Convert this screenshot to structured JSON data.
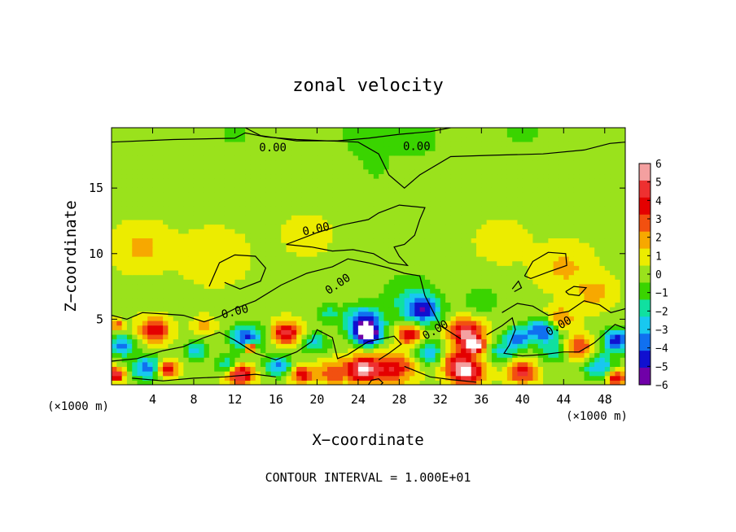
{
  "chart_data": {
    "type": "heatmap",
    "title": "zonal velocity",
    "xlabel": "X−coordinate",
    "ylabel": "Z−coordinate",
    "x_unit_label_left": "(×1000 m)",
    "x_unit_label_right": "(×1000 m)",
    "xlim": [
      0,
      50
    ],
    "ylim": [
      0,
      19.6
    ],
    "x_ticks": [
      4,
      8,
      12,
      16,
      20,
      24,
      28,
      32,
      36,
      40,
      44,
      48
    ],
    "y_ticks": [
      5,
      10,
      15
    ],
    "contour_labels": [
      "0.00",
      "0.00",
      "0.00",
      "0.00",
      "0.00",
      "0.00",
      "0.00"
    ],
    "footer": "CONTOUR INTERVAL = 1.000E+01",
    "colorbar": {
      "ticks": [
        "6",
        "5",
        "4",
        "3",
        "2",
        "1",
        "0",
        "−1",
        "−2",
        "−3",
        "−4",
        "−5",
        "−6"
      ],
      "colors": [
        "#f4a0a0",
        "#ee3030",
        "#e40000",
        "#f25010",
        "#f7a800",
        "#ecec00",
        "#9ae21c",
        "#3ad400",
        "#10e0a0",
        "#18c8f0",
        "#1070f0",
        "#1010d0",
        "#7000a8"
      ]
    },
    "anomalies": [
      {
        "x": 4.2,
        "z": 4.2,
        "v": 4.2,
        "r": 1.4
      },
      {
        "x": 1.0,
        "z": 3.0,
        "v": -4.0,
        "r": 1.3
      },
      {
        "x": 0.6,
        "z": 4.6,
        "v": 3.0,
        "r": 0.6
      },
      {
        "x": 0.4,
        "z": 0.8,
        "v": 5.5,
        "r": 0.8
      },
      {
        "x": 3.5,
        "z": 1.3,
        "v": -4.5,
        "r": 1.5
      },
      {
        "x": 5.3,
        "z": 1.2,
        "v": 5.0,
        "r": 1.0
      },
      {
        "x": 8.2,
        "z": 2.6,
        "v": -3.3,
        "r": 1.2
      },
      {
        "x": 9.0,
        "z": 4.5,
        "v": 2.0,
        "r": 1.0
      },
      {
        "x": 11.2,
        "z": 1.5,
        "v": -3.0,
        "r": 1.1
      },
      {
        "x": 12.5,
        "z": 0.8,
        "v": 5.5,
        "r": 1.2
      },
      {
        "x": 13.2,
        "z": 3.6,
        "v": -5.0,
        "r": 1.6
      },
      {
        "x": 13.5,
        "z": 2.9,
        "v": 6.5,
        "r": 0.6
      },
      {
        "x": 16.3,
        "z": 1.5,
        "v": -4.0,
        "r": 1.3
      },
      {
        "x": 17.0,
        "z": 4.0,
        "v": 5.0,
        "r": 1.3
      },
      {
        "x": 18.5,
        "z": 0.8,
        "v": 4.0,
        "r": 1.1
      },
      {
        "x": 19.8,
        "z": 3.2,
        "v": -3.0,
        "r": 1.3
      },
      {
        "x": 21.0,
        "z": 5.5,
        "v": -2.0,
        "r": 1.2
      },
      {
        "x": 24.5,
        "z": 4.8,
        "v": -5.5,
        "r": 1.9
      },
      {
        "x": 25.0,
        "z": 3.8,
        "v": -6.5,
        "r": 1.2
      },
      {
        "x": 24.5,
        "z": 1.2,
        "v": 6.0,
        "r": 1.6
      },
      {
        "x": 27.5,
        "z": 1.3,
        "v": 4.0,
        "r": 1.8
      },
      {
        "x": 29.0,
        "z": 3.9,
        "v": 4.5,
        "r": 1.2
      },
      {
        "x": 30.3,
        "z": 5.7,
        "v": -4.8,
        "r": 1.7
      },
      {
        "x": 31.0,
        "z": 2.5,
        "v": -3.5,
        "r": 1.4
      },
      {
        "x": 33.5,
        "z": 2.0,
        "v": 2.5,
        "r": 1.5
      },
      {
        "x": 34.5,
        "z": 4.0,
        "v": 5.5,
        "r": 1.6
      },
      {
        "x": 35.3,
        "z": 3.0,
        "v": 6.5,
        "r": 0.9
      },
      {
        "x": 34.5,
        "z": 1.0,
        "v": 6.0,
        "r": 1.6
      },
      {
        "x": 38.0,
        "z": 2.5,
        "v": -3.0,
        "r": 1.2
      },
      {
        "x": 39.5,
        "z": 3.6,
        "v": -4.0,
        "r": 1.3
      },
      {
        "x": 40.0,
        "z": 1.0,
        "v": 4.5,
        "r": 1.3
      },
      {
        "x": 42.0,
        "z": 4.2,
        "v": -5.0,
        "r": 1.6
      },
      {
        "x": 43.5,
        "z": 5.0,
        "v": 3.0,
        "r": 1.4
      },
      {
        "x": 43.0,
        "z": 2.5,
        "v": -2.5,
        "r": 1.3
      },
      {
        "x": 45.5,
        "z": 2.8,
        "v": 3.5,
        "r": 1.4
      },
      {
        "x": 47.5,
        "z": 1.4,
        "v": -4.0,
        "r": 1.5
      },
      {
        "x": 49.2,
        "z": 3.4,
        "v": -5.5,
        "r": 1.4
      },
      {
        "x": 49.0,
        "z": 0.6,
        "v": 5.0,
        "r": 0.9
      },
      {
        "x": 21.5,
        "z": 1.0,
        "v": 3.0,
        "r": 1.4
      },
      {
        "x": 10.0,
        "z": 9.8,
        "v": 1.2,
        "r": 2.8
      },
      {
        "x": 3.0,
        "z": 10.5,
        "v": 1.5,
        "r": 2.5
      },
      {
        "x": 44.0,
        "z": 9.0,
        "v": 1.5,
        "r": 2.5
      },
      {
        "x": 47.0,
        "z": 7.0,
        "v": 1.7,
        "r": 1.8
      },
      {
        "x": 26.0,
        "z": 16.0,
        "v": -0.6,
        "r": 2.5
      },
      {
        "x": 30.0,
        "z": 18.7,
        "v": -1.5,
        "r": 2.0
      },
      {
        "x": 25.0,
        "z": 19.2,
        "v": -1.2,
        "r": 4.0
      },
      {
        "x": 12.0,
        "z": 19.3,
        "v": -0.9,
        "r": 3.5
      },
      {
        "x": 40.0,
        "z": 19.3,
        "v": -1.0,
        "r": 3.0
      },
      {
        "x": 29.0,
        "z": 6.8,
        "v": -1.8,
        "r": 3.0
      },
      {
        "x": 36.0,
        "z": 6.5,
        "v": -1.5,
        "r": 1.8
      },
      {
        "x": 19.0,
        "z": 11.5,
        "v": 0.8,
        "r": 2.2
      },
      {
        "x": 38.0,
        "z": 11.0,
        "v": 1.0,
        "r": 2.2
      }
    ],
    "contours": [
      [
        [
          0,
          18.5
        ],
        [
          6,
          18.7
        ],
        [
          12,
          18.8
        ],
        [
          13,
          19.2
        ],
        [
          15,
          18.9
        ],
        [
          18,
          18.7
        ],
        [
          24,
          18.5
        ],
        [
          26,
          17.6
        ],
        [
          27,
          16.0
        ],
        [
          28.5,
          15.0
        ],
        [
          30,
          16.0
        ],
        [
          33,
          17.4
        ],
        [
          37,
          17.5
        ],
        [
          42,
          17.6
        ],
        [
          46,
          17.9
        ],
        [
          48.5,
          18.4
        ],
        [
          50,
          18.5
        ]
      ],
      [
        [
          13,
          19.6
        ],
        [
          14.5,
          19.0
        ],
        [
          18,
          18.6
        ],
        [
          22,
          18.6
        ],
        [
          25,
          18.8
        ],
        [
          28,
          19.1
        ],
        [
          31,
          19.3
        ],
        [
          33,
          19.6
        ]
      ],
      [
        [
          17,
          10.7
        ],
        [
          20,
          11.6
        ],
        [
          22.5,
          12.2
        ],
        [
          25,
          12.6
        ],
        [
          26,
          13.1
        ],
        [
          28,
          13.7
        ],
        [
          30.5,
          13.5
        ],
        [
          30,
          12.6
        ],
        [
          29.5,
          11.4
        ],
        [
          28.5,
          10.7
        ],
        [
          27.5,
          10.5
        ],
        [
          28,
          9.8
        ],
        [
          28.8,
          9.1
        ],
        [
          27,
          9.3
        ],
        [
          25.5,
          10.0
        ],
        [
          23.5,
          10.3
        ],
        [
          21.5,
          10.2
        ],
        [
          19.5,
          10.5
        ],
        [
          17,
          10.7
        ]
      ],
      [
        [
          0,
          5.3
        ],
        [
          1.5,
          5.0
        ],
        [
          3,
          5.5
        ],
        [
          5,
          5.4
        ],
        [
          7,
          5.3
        ],
        [
          9,
          4.8
        ],
        [
          10.5,
          5.2
        ],
        [
          12,
          5.8
        ],
        [
          14,
          6.4
        ],
        [
          16.5,
          7.6
        ],
        [
          19,
          8.5
        ],
        [
          21.5,
          9.0
        ],
        [
          23,
          9.6
        ],
        [
          25,
          9.3
        ],
        [
          27,
          8.9
        ],
        [
          28.5,
          8.5
        ],
        [
          30,
          8.3
        ],
        [
          30.5,
          6.8
        ],
        [
          32,
          4.5
        ],
        [
          34,
          3.5
        ]
      ],
      [
        [
          9.5,
          7.5
        ],
        [
          10.5,
          9.3
        ],
        [
          12,
          9.9
        ],
        [
          14,
          9.8
        ],
        [
          15,
          8.9
        ],
        [
          14.5,
          7.9
        ],
        [
          12.5,
          7.3
        ],
        [
          11,
          7.8
        ]
      ],
      [
        [
          38,
          5.5
        ],
        [
          39.5,
          6.2
        ],
        [
          41,
          6.0
        ],
        [
          42.5,
          5.3
        ],
        [
          44.5,
          5.6
        ],
        [
          46,
          6.4
        ],
        [
          47.5,
          6.1
        ],
        [
          48.6,
          5.5
        ],
        [
          50,
          5.8
        ]
      ],
      [
        [
          40.2,
          8.3
        ],
        [
          41,
          9.4
        ],
        [
          42.5,
          10.1
        ],
        [
          44.2,
          10.0
        ],
        [
          44.3,
          9.1
        ],
        [
          42.5,
          8.6
        ],
        [
          40.8,
          8.1
        ],
        [
          40.2,
          8.3
        ]
      ],
      [
        [
          44.2,
          7.1
        ],
        [
          45,
          7.5
        ],
        [
          46.2,
          7.4
        ],
        [
          45.5,
          6.8
        ],
        [
          44.5,
          6.9
        ],
        [
          44.2,
          7.1
        ]
      ],
      [
        [
          39,
          7.3
        ],
        [
          39.6,
          7.9
        ],
        [
          39.9,
          7.4
        ],
        [
          39.2,
          7.1
        ]
      ],
      [
        [
          0,
          1.8
        ],
        [
          2.5,
          2.0
        ],
        [
          5,
          2.6
        ],
        [
          7,
          2.9
        ],
        [
          9,
          3.6
        ],
        [
          10.5,
          4.0
        ],
        [
          12,
          3.4
        ],
        [
          14,
          2.4
        ],
        [
          16,
          1.9
        ],
        [
          18,
          2.5
        ],
        [
          19.5,
          3.3
        ],
        [
          20,
          4.2
        ],
        [
          21.5,
          3.6
        ],
        [
          22,
          2.0
        ],
        [
          23,
          2.3
        ],
        [
          25,
          3.3
        ],
        [
          27.5,
          3.7
        ],
        [
          28.2,
          3.1
        ],
        [
          27,
          2.4
        ],
        [
          26,
          1.9
        ]
      ],
      [
        [
          28.5,
          1.4
        ],
        [
          31,
          0.6
        ],
        [
          33,
          0.4
        ],
        [
          35.5,
          0.2
        ]
      ],
      [
        [
          36.5,
          3.8
        ],
        [
          38,
          4.5
        ],
        [
          39,
          5.1
        ],
        [
          39.3,
          4.2
        ],
        [
          38.7,
          3.0
        ],
        [
          38.2,
          2.4
        ],
        [
          40,
          2.2
        ],
        [
          42,
          2.3
        ],
        [
          44,
          2.5
        ],
        [
          45.5,
          2.5
        ],
        [
          47,
          3.2
        ],
        [
          48,
          3.9
        ],
        [
          49,
          4.6
        ],
        [
          50,
          4.3
        ]
      ],
      [
        [
          2,
          0.5
        ],
        [
          5,
          0.3
        ],
        [
          8,
          0.5
        ],
        [
          11,
          0.6
        ],
        [
          14,
          0.8
        ],
        [
          16,
          0.6
        ]
      ],
      [
        [
          25,
          0.0
        ],
        [
          25.3,
          0.35
        ],
        [
          26,
          0.45
        ],
        [
          26.4,
          0.15
        ],
        [
          26.2,
          0.0
        ]
      ]
    ],
    "label_points": [
      [
        15.7,
        18.1
      ],
      [
        29.7,
        18.2
      ],
      [
        19.9,
        11.9
      ],
      [
        22.0,
        7.7
      ],
      [
        12.0,
        5.6
      ],
      [
        31.5,
        4.2
      ],
      [
        43.5,
        4.5
      ]
    ],
    "label_angles": [
      0,
      0,
      -12,
      -34,
      -14,
      -30,
      -30
    ]
  }
}
